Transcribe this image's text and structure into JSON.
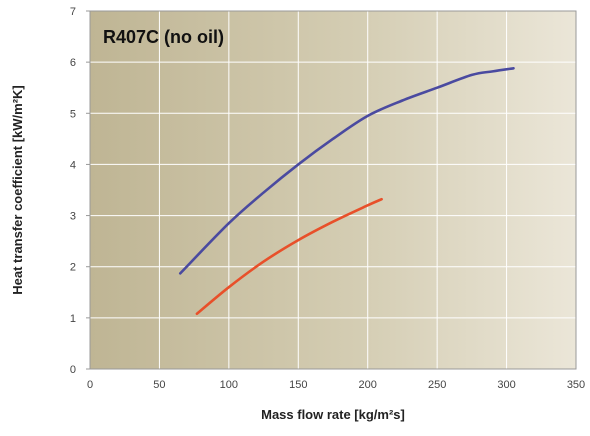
{
  "chart_data": {
    "type": "line",
    "title": "",
    "annotation": "R407C (no oil)",
    "xlabel": "Mass flow rate [kg/m²s]",
    "ylabel": "Heat transfer coefficient [kW/m²K]",
    "xlim": [
      0,
      350
    ],
    "ylim": [
      0,
      7
    ],
    "xticks": [
      "0",
      "50",
      "100",
      "150",
      "200",
      "250",
      "300",
      "350"
    ],
    "yticks": [
      "0",
      "1",
      "2",
      "3",
      "4",
      "5",
      "6",
      "7"
    ],
    "grid": true,
    "legend": "none",
    "series": [
      {
        "color": "#4a4aa0",
        "x": [
          65,
          100,
          125,
          150,
          175,
          200,
          225,
          250,
          275,
          290,
          305
        ],
        "y": [
          1.87,
          2.85,
          3.45,
          4.0,
          4.5,
          4.95,
          5.25,
          5.5,
          5.75,
          5.82,
          5.88
        ]
      },
      {
        "color": "#e8502a",
        "x": [
          77,
          100,
          125,
          150,
          175,
          200,
          210
        ],
        "y": [
          1.08,
          1.6,
          2.1,
          2.52,
          2.88,
          3.2,
          3.32
        ]
      }
    ]
  }
}
